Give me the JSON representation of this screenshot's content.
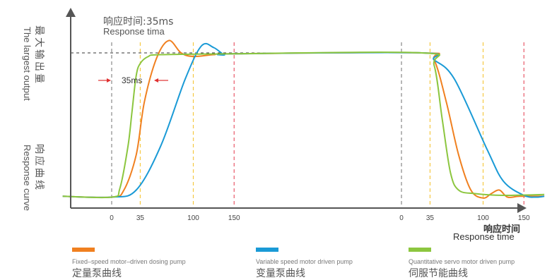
{
  "chart_data": {
    "type": "line",
    "title": "响应时间:35ms",
    "subtitle": "Response  tima",
    "ylabel_top_cn": "最大输出量",
    "ylabel_top_en": "The largest output",
    "ylabel_bottom_cn": "响应曲线",
    "ylabel_bottom_en": "Response curve",
    "xlabel_cn": "响应时间",
    "xlabel_en": "Response time",
    "annotation": "35ms",
    "rise_ticks": [
      "0",
      "35",
      "100",
      "150"
    ],
    "fall_ticks": [
      "0",
      "35",
      "100",
      "150"
    ],
    "colors": {
      "axis": "#555555",
      "orange": "#f08020",
      "blue": "#1a9ad6",
      "green": "#8cc63f",
      "gray_marker": "#888888",
      "yellow_marker": "#f5c842",
      "red_marker": "#e85a6a",
      "arrow": "#e03030"
    },
    "series": [
      {
        "key": "orange",
        "color": "#f08020",
        "legend_en": "Fixed–speed motor–driven dosing pump",
        "legend_cn": "定量泵曲线",
        "points": [
          [
            -60,
            0.015
          ],
          [
            0,
            0.01
          ],
          [
            15,
            0.05
          ],
          [
            30,
            0.25
          ],
          [
            40,
            0.55
          ],
          [
            55,
            0.8
          ],
          [
            70,
            0.9
          ],
          [
            85,
            0.83
          ],
          [
            100,
            0.81
          ],
          [
            125,
            0.82
          ],
          [
            150,
            0.825
          ],
          [
            380,
            0.83
          ],
          [
            395,
            0.79
          ],
          [
            410,
            0.55
          ],
          [
            425,
            0.25
          ],
          [
            440,
            0.05
          ],
          [
            455,
            0.005
          ],
          [
            465,
            0.03
          ],
          [
            475,
            0.05
          ],
          [
            485,
            0.01
          ],
          [
            500,
            0.015
          ],
          [
            530,
            0.015
          ]
        ]
      },
      {
        "key": "blue",
        "color": "#1a9ad6",
        "legend_en": "Variable speed motor driven pump",
        "legend_cn": "变量泵曲线",
        "points": [
          [
            -60,
            0.015
          ],
          [
            0,
            0.01
          ],
          [
            30,
            0.05
          ],
          [
            60,
            0.3
          ],
          [
            90,
            0.68
          ],
          [
            110,
            0.87
          ],
          [
            125,
            0.86
          ],
          [
            138,
            0.82
          ],
          [
            150,
            0.825
          ],
          [
            380,
            0.83
          ],
          [
            395,
            0.79
          ],
          [
            420,
            0.68
          ],
          [
            460,
            0.28
          ],
          [
            480,
            0.1
          ],
          [
            505,
            0.02
          ],
          [
            520,
            0.01
          ],
          [
            530,
            0.015
          ]
        ]
      },
      {
        "key": "green",
        "color": "#8cc63f",
        "legend_en": "Quantitative servo motor driven pump",
        "legend_cn": "伺服节能曲线",
        "points": [
          [
            -60,
            0.015
          ],
          [
            0,
            0.01
          ],
          [
            10,
            0.06
          ],
          [
            20,
            0.3
          ],
          [
            25,
            0.5
          ],
          [
            30,
            0.7
          ],
          [
            35,
            0.77
          ],
          [
            45,
            0.81
          ],
          [
            60,
            0.82
          ],
          [
            150,
            0.825
          ],
          [
            380,
            0.83
          ],
          [
            395,
            0.76
          ],
          [
            405,
            0.45
          ],
          [
            415,
            0.15
          ],
          [
            425,
            0.05
          ],
          [
            445,
            0.03
          ],
          [
            480,
            0.02
          ],
          [
            530,
            0.025
          ]
        ]
      }
    ]
  }
}
